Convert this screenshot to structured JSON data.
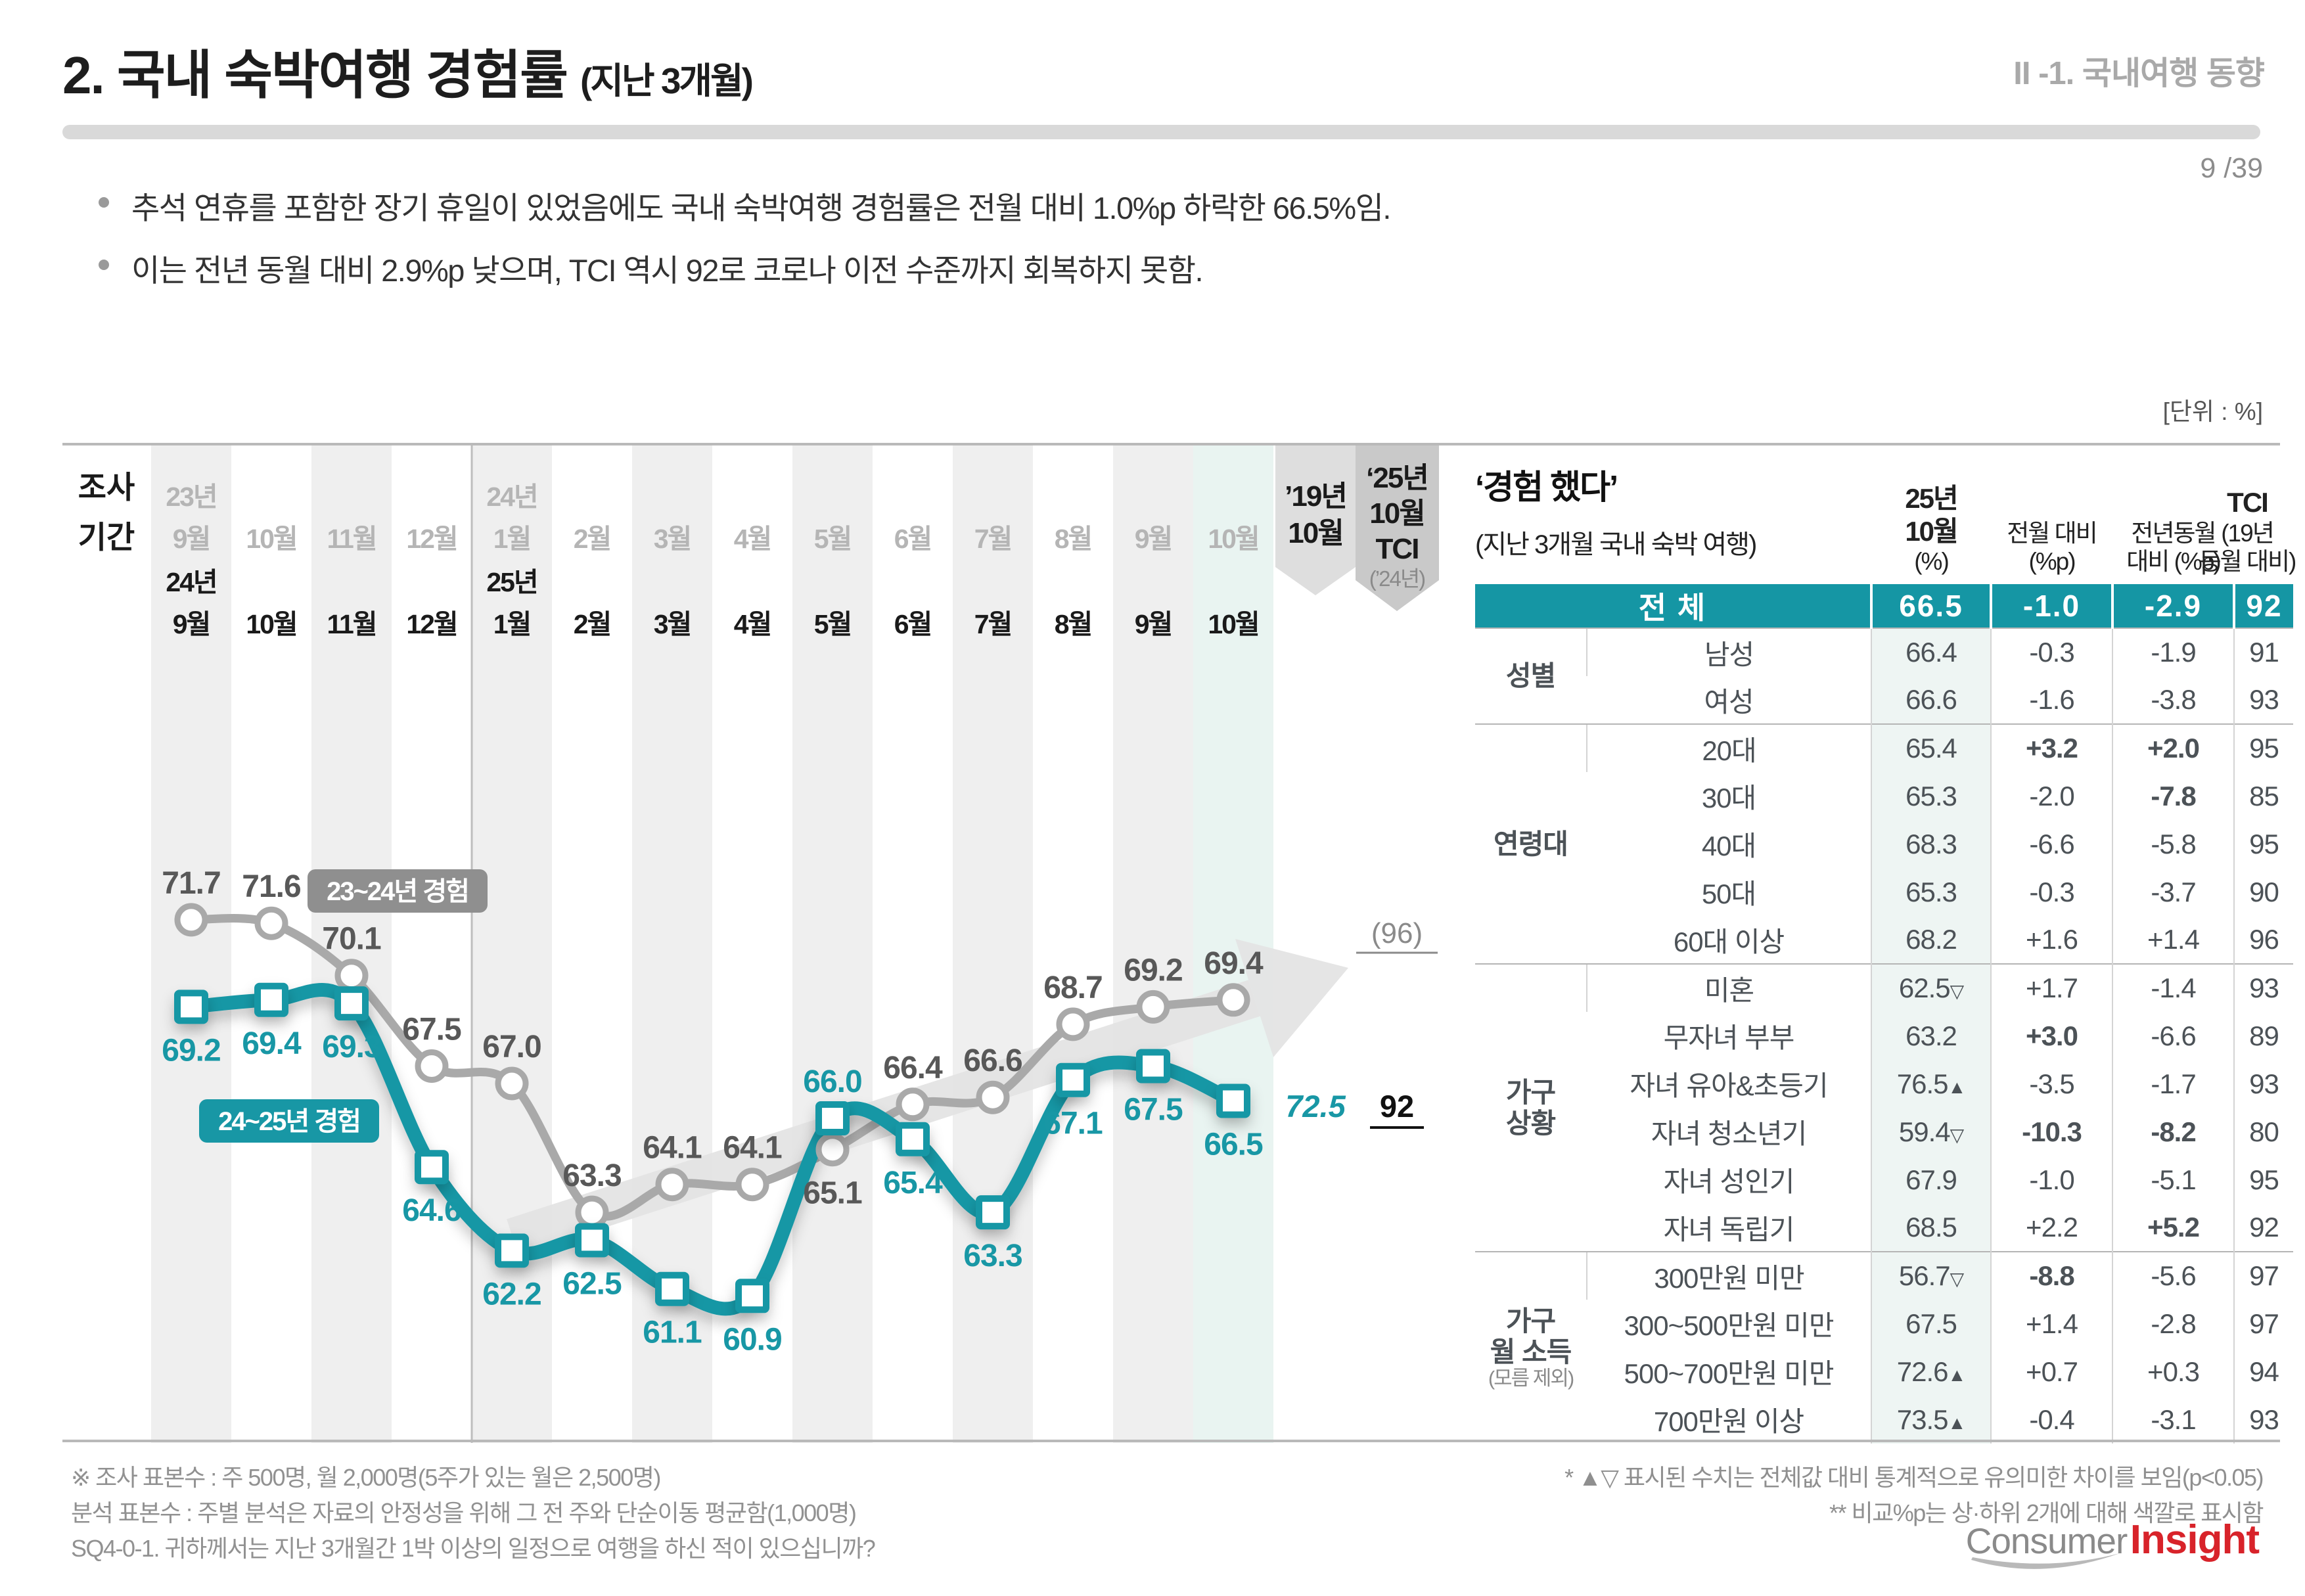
{
  "colors": {
    "accent_teal": "#1897a5",
    "table_header_teal": "#1596a4",
    "gray_series": "#a9a9a9",
    "gray_value_text": "#585858",
    "mint_band": "#e9f4f1",
    "band_gray": "#efefef",
    "ribbon1_gray": "#dedede",
    "ribbon2_gray": "#c9c9c9",
    "significant_red": "#e8000e",
    "significant_blue": "#1414e6"
  },
  "header": {
    "title": "2. 국내 숙박여행 경험률",
    "title_suffix": "(지난 3개월)",
    "section": "II -1. 국내여행 동향",
    "page": "9 /39"
  },
  "bullets": [
    "추석 연휴를 포함한 장기 휴일이 있었음에도 국내 숙박여행 경험률은 전월 대비 1.0%p 하락한 66.5%임.",
    "이는 전년 동월 대비 2.9%p 낮으며, TCI 역시 92로 코로나 이전 수준까지 회복하지 못함."
  ],
  "unit_label": "[단위 : %]",
  "chart": {
    "axis_label": "조사|기간",
    "months_gray": [
      "23년|9월",
      "10월",
      "11월",
      "12월",
      "24년|1월",
      "2월",
      "3월",
      "4월",
      "5월",
      "6월",
      "7월",
      "8월",
      "9월",
      "10월"
    ],
    "months_black": [
      "24년|9월",
      "10월",
      "11월",
      "12월",
      "25년|1월",
      "2월",
      "3월",
      "4월",
      "5월",
      "6월",
      "7월",
      "8월",
      "9월",
      "10월"
    ],
    "ribbons": [
      {
        "lines": [
          "’19년",
          "10월"
        ],
        "sub": ""
      },
      {
        "lines": [
          "‘25년",
          "10월",
          "TCI"
        ],
        "sub": "(’24년)"
      }
    ],
    "legend": [
      {
        "text": "23~24년 경험"
      },
      {
        "text": "24~25년 경험"
      }
    ]
  },
  "chart_data": {
    "type": "line",
    "title": "국내 숙박여행 경험률 (지난 3개월)",
    "categories_gray": [
      "23년 9월",
      "10월",
      "11월",
      "12월",
      "24년 1월",
      "2월",
      "3월",
      "4월",
      "5월",
      "6월",
      "7월",
      "8월",
      "9월",
      "10월"
    ],
    "categories_black": [
      "24년 9월",
      "10월",
      "11월",
      "12월",
      "25년 1월",
      "2월",
      "3월",
      "4월",
      "5월",
      "6월",
      "7월",
      "8월",
      "9월",
      "10월"
    ],
    "ylim": [
      59,
      74
    ],
    "grid": false,
    "series": [
      {
        "name": "23~24년 경험",
        "marker": "circle",
        "values": [
          71.7,
          71.6,
          70.1,
          67.5,
          67.0,
          63.3,
          64.1,
          64.1,
          65.1,
          66.4,
          66.6,
          68.7,
          69.2,
          69.4
        ],
        "label_pos": [
          "a",
          "a",
          "a",
          "a",
          "a",
          "a",
          "a",
          "a",
          "b",
          "a",
          "a",
          "a",
          "a",
          "a"
        ]
      },
      {
        "name": "24~25년 경험",
        "marker": "square",
        "values": [
          69.2,
          69.4,
          69.3,
          64.6,
          62.2,
          62.5,
          61.1,
          60.9,
          66.0,
          65.4,
          63.3,
          67.1,
          67.5,
          66.5
        ],
        "label_pos": [
          "b",
          "b",
          "b",
          "b",
          "b",
          "b",
          "b",
          "b",
          "a",
          "b",
          "b",
          "b",
          "b",
          "b"
        ]
      }
    ],
    "extra_values": {
      "y19_oct": "72.5",
      "tci_24": "(96)",
      "tci_25": "92"
    }
  },
  "table": {
    "title": "‘경험 했다’",
    "subtitle": "(지난 3개월 국내 숙박 여행)",
    "col_heads": {
      "val": [
        "25년",
        "10월",
        "(%)"
      ],
      "mom": [
        "전월 대비",
        "(%p)"
      ],
      "yoy": [
        "전년동월",
        "대비 (%p)"
      ],
      "tci": [
        "TCI",
        "(19년",
        "동월 대비)"
      ]
    },
    "total": {
      "name": "전 체",
      "val": "66.5",
      "mom": "-1.0",
      "yoy": "-2.9",
      "tci": "92"
    },
    "groups": [
      {
        "label": "성별",
        "sub": "",
        "rows": [
          {
            "name": "남성",
            "val": "66.4",
            "mark": "",
            "mom": "-0.3",
            "momc": "",
            "yoy": "-1.9",
            "yoyc": "",
            "tci": "91"
          },
          {
            "name": "여성",
            "val": "66.6",
            "mark": "",
            "mom": "-1.6",
            "momc": "",
            "yoy": "-3.8",
            "yoyc": "",
            "tci": "93"
          }
        ]
      },
      {
        "label": "연령대",
        "sub": "",
        "rows": [
          {
            "name": "20대",
            "val": "65.4",
            "mark": "",
            "mom": "+3.2",
            "momc": "red",
            "yoy": "+2.0",
            "yoyc": "red",
            "tci": "95"
          },
          {
            "name": "30대",
            "val": "65.3",
            "mark": "",
            "mom": "-2.0",
            "momc": "",
            "yoy": "-7.8",
            "yoyc": "blue",
            "tci": "85"
          },
          {
            "name": "40대",
            "val": "68.3",
            "mark": "",
            "mom": "-6.6",
            "momc": "",
            "yoy": "-5.8",
            "yoyc": "",
            "tci": "95"
          },
          {
            "name": "50대",
            "val": "65.3",
            "mark": "",
            "mom": "-0.3",
            "momc": "",
            "yoy": "-3.7",
            "yoyc": "",
            "tci": "90"
          },
          {
            "name": "60대 이상",
            "val": "68.2",
            "mark": "",
            "mom": "+1.6",
            "momc": "",
            "yoy": "+1.4",
            "yoyc": "",
            "tci": "96"
          }
        ]
      },
      {
        "label": "가구|상황",
        "sub": "",
        "rows": [
          {
            "name": "미혼",
            "val": "62.5",
            "mark": "▽",
            "mom": "+1.7",
            "momc": "",
            "yoy": "-1.4",
            "yoyc": "",
            "tci": "93"
          },
          {
            "name": "무자녀 부부",
            "val": "63.2",
            "mark": "",
            "mom": "+3.0",
            "momc": "red",
            "yoy": "-6.6",
            "yoyc": "",
            "tci": "89"
          },
          {
            "name": "자녀 유아&초등기",
            "val": "76.5",
            "mark": "▲",
            "mom": "-3.5",
            "momc": "",
            "yoy": "-1.7",
            "yoyc": "",
            "tci": "93"
          },
          {
            "name": "자녀 청소년기",
            "val": "59.4",
            "mark": "▽",
            "mom": "-10.3",
            "momc": "blue",
            "yoy": "-8.2",
            "yoyc": "blue",
            "tci": "80"
          },
          {
            "name": "자녀 성인기",
            "val": "67.9",
            "mark": "",
            "mom": "-1.0",
            "momc": "",
            "yoy": "-5.1",
            "yoyc": "",
            "tci": "95"
          },
          {
            "name": "자녀 독립기",
            "val": "68.5",
            "mark": "",
            "mom": "+2.2",
            "momc": "",
            "yoy": "+5.2",
            "yoyc": "red",
            "tci": "92"
          }
        ]
      },
      {
        "label": "가구|월 소득",
        "sub": "(모름 제외)",
        "rows": [
          {
            "name": "300만원 미만",
            "val": "56.7",
            "mark": "▽",
            "mom": "-8.8",
            "momc": "blue",
            "yoy": "-5.6",
            "yoyc": "",
            "tci": "97"
          },
          {
            "name": "300~500만원 미만",
            "val": "67.5",
            "mark": "",
            "mom": "+1.4",
            "momc": "",
            "yoy": "-2.8",
            "yoyc": "",
            "tci": "97"
          },
          {
            "name": "500~700만원 미만",
            "val": "72.6",
            "mark": "▲",
            "mom": "+0.7",
            "momc": "",
            "yoy": "+0.3",
            "yoyc": "",
            "tci": "94"
          },
          {
            "name": "700만원 이상",
            "val": "73.5",
            "mark": "▲",
            "mom": "-0.4",
            "momc": "",
            "yoy": "-3.1",
            "yoyc": "",
            "tci": "93"
          }
        ]
      }
    ]
  },
  "footnotes": {
    "left": [
      "※ 조사 표본수 : 주 500명, 월 2,000명(5주가 있는 월은 2,500명)",
      "분석 표본수 : 주별 분석은 자료의 안정성을 위해 그 전 주와 단순이동 평균함(1,000명)",
      "SQ4-0-1. 귀하께서는 지난 3개월간 1박 이상의 일정으로 여행을 하신 적이 있으십니까?"
    ],
    "right": [
      "* ▲▽ 표시된 수치는 전체값 대비 통계적으로 유의미한 차이를 보임(p<0.05)",
      "** 비교%p는 상·하위 2개에 대해 색깔로 표시함"
    ]
  },
  "logo": {
    "gray": "Consumer",
    "red": "Insight"
  }
}
